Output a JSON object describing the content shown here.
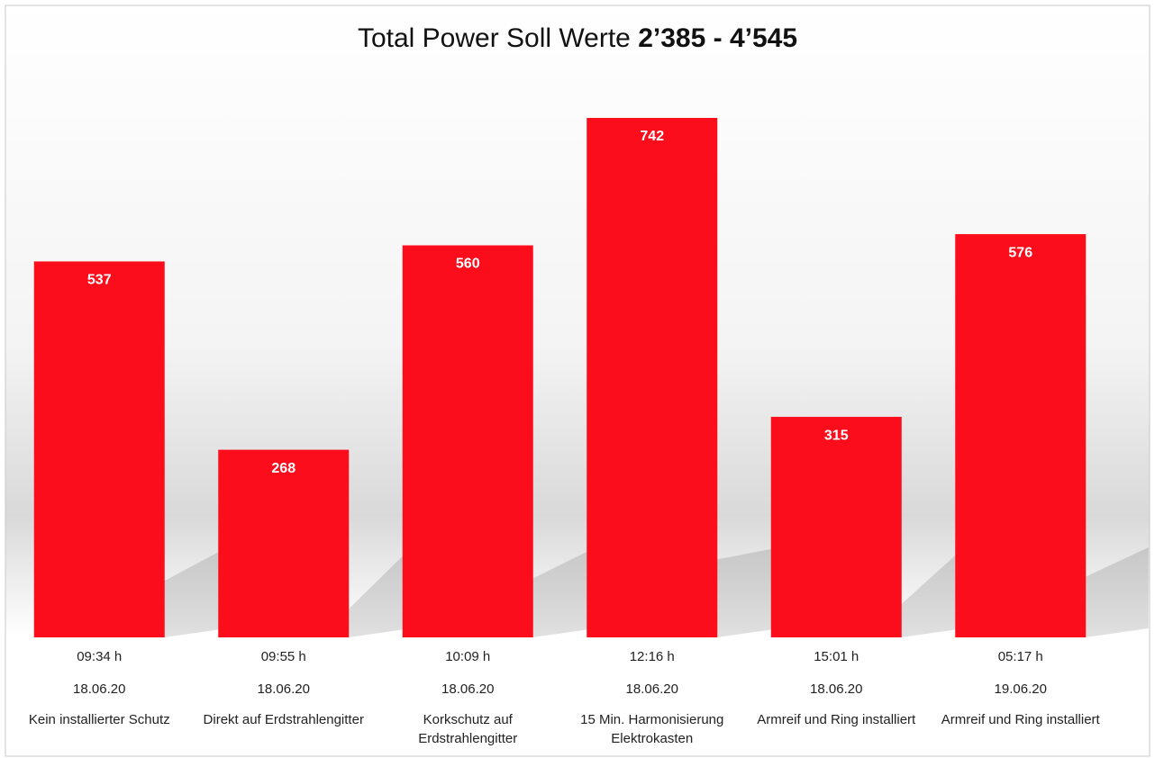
{
  "chart_data": {
    "type": "bar",
    "title": "Total Power Soll Werte",
    "title_emphasis": "2’385 - 4’545",
    "categories": [
      [
        "09:34 h",
        "18.06.20",
        "Kein installierter Schutz"
      ],
      [
        "09:55 h",
        "18.06.20",
        "Direkt auf Erdstrahlengitter"
      ],
      [
        "10:09 h",
        "18.06.20",
        "Korkschutz auf",
        "Erdstrahlengitter"
      ],
      [
        "12:16 h",
        "18.06.20",
        "15 Min. Harmonisierung",
        "Elektrokasten"
      ],
      [
        "15:01 h",
        "18.06.20",
        "Armreif und Ring installiert"
      ],
      [
        "05:17 h",
        "19.06.20",
        "Armreif und Ring installiert"
      ]
    ],
    "values": [
      537,
      268,
      560,
      742,
      315,
      576
    ],
    "color": "#fc0d1b"
  }
}
